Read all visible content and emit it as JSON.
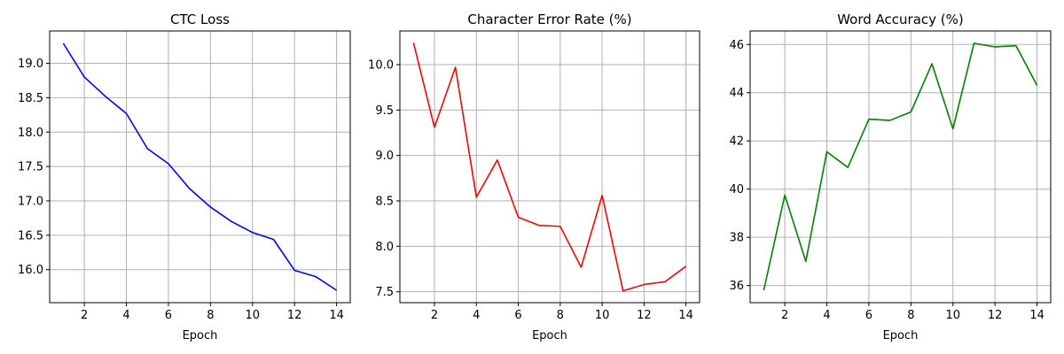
{
  "chart_data": [
    {
      "type": "line",
      "title": "CTC Loss",
      "xlabel": "Epoch",
      "ylabel": "",
      "x": [
        1,
        2,
        3,
        4,
        5,
        6,
        7,
        8,
        9,
        10,
        11,
        12,
        13,
        14
      ],
      "series": [
        {
          "color": "#0000ff",
          "values": [
            19.29,
            18.8,
            18.52,
            18.27,
            17.76,
            17.54,
            17.18,
            16.91,
            16.7,
            16.54,
            16.44,
            15.99,
            15.9,
            15.7
          ]
        }
      ],
      "xlim": [
        0.35,
        14.65
      ],
      "ylim": [
        15.52,
        19.47
      ],
      "xticks": [
        2,
        4,
        6,
        8,
        10,
        12,
        14
      ],
      "yticks": [
        16.0,
        16.5,
        17.0,
        17.5,
        18.0,
        18.5,
        19.0
      ],
      "ytick_labels": [
        "16.0",
        "16.5",
        "17.0",
        "17.5",
        "18.0",
        "18.5",
        "19.0"
      ],
      "grid": true
    },
    {
      "type": "line",
      "title": "Character Error Rate (%)",
      "xlabel": "Epoch",
      "ylabel": "",
      "x": [
        1,
        2,
        3,
        4,
        5,
        6,
        7,
        8,
        9,
        10,
        11,
        12,
        13,
        14
      ],
      "series": [
        {
          "color": "#ff0000",
          "values": [
            10.24,
            9.31,
            9.97,
            8.54,
            8.95,
            8.32,
            8.23,
            8.22,
            7.77,
            8.56,
            7.51,
            7.58,
            7.61,
            7.78
          ]
        }
      ],
      "xlim": [
        0.35,
        14.65
      ],
      "ylim": [
        7.38,
        10.37
      ],
      "xticks": [
        2,
        4,
        6,
        8,
        10,
        12,
        14
      ],
      "yticks": [
        7.5,
        8.0,
        8.5,
        9.0,
        9.5,
        10.0
      ],
      "ytick_labels": [
        "7.5",
        "8.0",
        "8.5",
        "9.0",
        "9.5",
        "10.0"
      ],
      "grid": true
    },
    {
      "type": "line",
      "title": "Word Accuracy (%)",
      "xlabel": "Epoch",
      "ylabel": "",
      "x": [
        1,
        2,
        3,
        4,
        5,
        6,
        7,
        8,
        9,
        10,
        11,
        12,
        13,
        14
      ],
      "series": [
        {
          "color": "#008000",
          "values": [
            35.8,
            39.75,
            37.0,
            41.55,
            40.9,
            42.9,
            42.85,
            43.2,
            45.2,
            42.5,
            46.05,
            45.9,
            45.95,
            44.3
          ]
        }
      ],
      "xlim": [
        0.35,
        14.65
      ],
      "ylim": [
        35.29,
        46.56
      ],
      "xticks": [
        2,
        4,
        6,
        8,
        10,
        12,
        14
      ],
      "yticks": [
        36,
        38,
        40,
        42,
        44,
        46
      ],
      "ytick_labels": [
        "36",
        "38",
        "40",
        "42",
        "44",
        "46"
      ],
      "grid": true
    }
  ]
}
